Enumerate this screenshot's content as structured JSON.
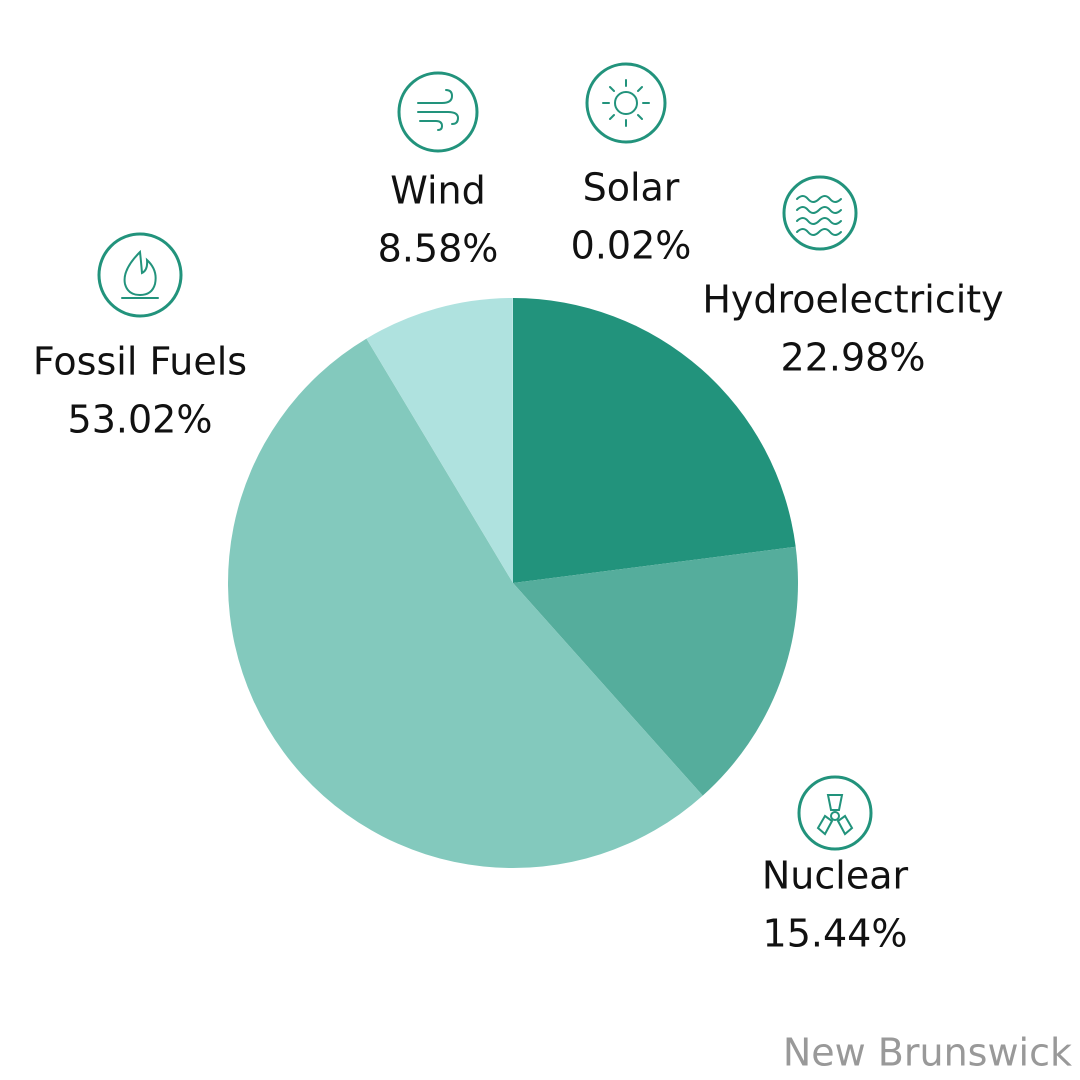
{
  "chart_data": {
    "type": "pie",
    "categories": [
      "Hydroelectricity",
      "Nuclear",
      "Fossil Fuels",
      "Wind",
      "Solar"
    ],
    "values": [
      22.98,
      15.44,
      53.02,
      8.58,
      0.02
    ],
    "value_labels": [
      "22.98%",
      "15.44%",
      "53.02%",
      "8.58%",
      "0.02%"
    ],
    "colors": [
      "#22937c",
      "#55ad9c",
      "#83c9bd",
      "#afe2df",
      "#c8ece9"
    ],
    "caption": "New Brunswick"
  }
}
